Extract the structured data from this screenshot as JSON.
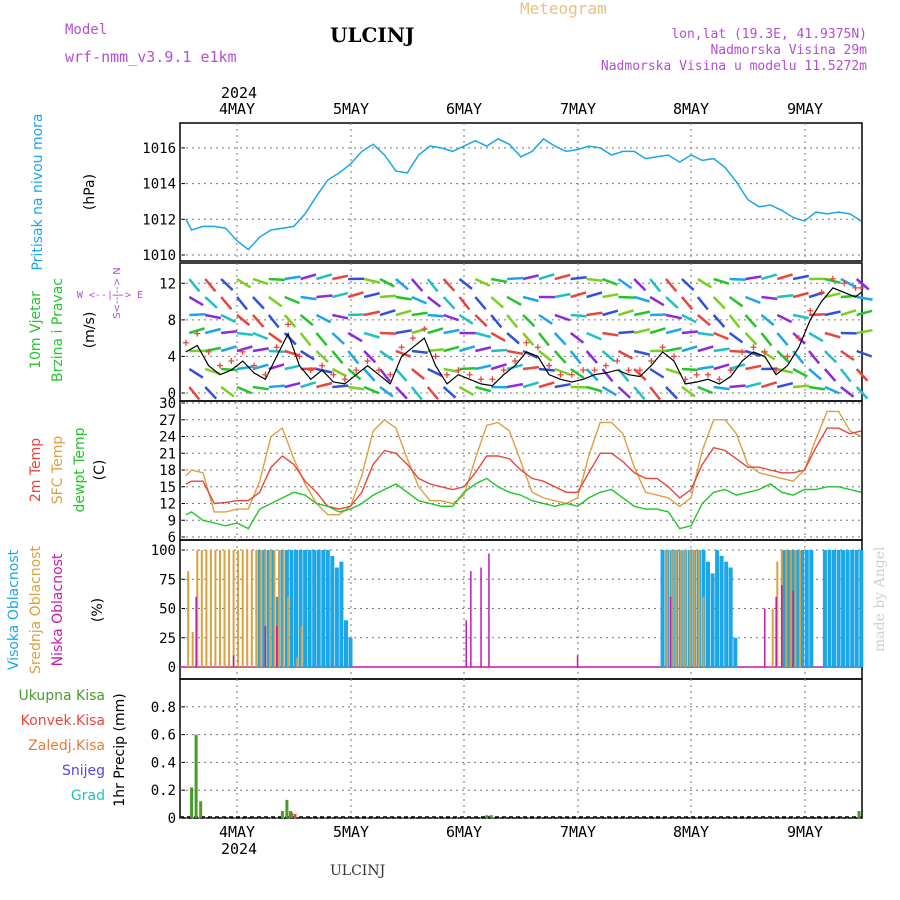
{
  "header": {
    "model_label": "Model",
    "model_name": "wrf-nmm_v3.9.1  e1km",
    "station": "ULCINJ",
    "meteogram": "Meteogram",
    "lonlat": "lon,lat (19.3E, 41.9375N)",
    "elev": "Nadmorska Visina 29m",
    "elev_model": "Nadmorska Visina u modelu 11.5272m",
    "watermark": "made by Angel",
    "footer": "ULCINJ"
  },
  "colors": {
    "pressure": "#1ba6e8",
    "temp2m": "#e8463c",
    "sfc": "#dba040",
    "dewpt": "#22c52a",
    "cloud_high": "#1ba6e8",
    "cloud_mid": "#dba040",
    "cloud_low": "#c21aae",
    "precip_total": "#4a9c2a",
    "precip_conv": "#e8463c",
    "purple_text": "#b54dd6",
    "orange_text": "#e8c080"
  },
  "chart_data": [
    {
      "type": "line",
      "name": "pressure",
      "ylabel": "Pritisak na nivou mora",
      "unit": "(hPa)",
      "ylim": [
        1010,
        1017
      ],
      "yticks": [
        "1010",
        "1012",
        "1014",
        "1016"
      ],
      "x_dates": [
        "2024-05-04",
        "2024-05-05",
        "2024-05-06",
        "2024-05-07",
        "2024-05-08",
        "2024-05-09"
      ],
      "x_labels": [
        "4MAY",
        "5MAY",
        "6MAY",
        "7MAY",
        "8MAY",
        "9MAY"
      ],
      "top_year": "2024",
      "x_day": [
        3.55,
        3.6,
        3.7,
        3.8,
        3.9,
        4.0,
        4.1,
        4.2,
        4.3,
        4.4,
        4.5,
        4.6,
        4.7,
        4.8,
        4.9,
        5.0,
        5.1,
        5.2,
        5.3,
        5.4,
        5.5,
        5.6,
        5.7,
        5.8,
        5.9,
        6.0,
        6.1,
        6.2,
        6.3,
        6.4,
        6.5,
        6.6,
        6.7,
        6.8,
        6.9,
        7.0,
        7.1,
        7.2,
        7.3,
        7.4,
        7.5,
        7.6,
        7.7,
        7.8,
        7.9,
        8.0,
        8.1,
        8.2,
        8.3,
        8.4,
        8.5,
        8.6,
        8.7,
        8.8,
        8.9,
        9.0,
        9.1,
        9.2,
        9.3,
        9.4,
        9.5
      ],
      "values": [
        1012.0,
        1011.4,
        1011.6,
        1011.6,
        1011.5,
        1010.8,
        1010.3,
        1011.0,
        1011.4,
        1011.5,
        1011.6,
        1012.3,
        1013.3,
        1014.2,
        1014.6,
        1015.1,
        1015.8,
        1016.2,
        1015.6,
        1014.7,
        1014.6,
        1015.6,
        1016.1,
        1016.0,
        1015.8,
        1016.1,
        1016.4,
        1016.1,
        1016.5,
        1016.2,
        1015.5,
        1015.8,
        1016.5,
        1016.1,
        1015.8,
        1015.9,
        1016.1,
        1016.0,
        1015.6,
        1015.8,
        1015.8,
        1015.4,
        1015.5,
        1015.6,
        1015.2,
        1015.6,
        1015.3,
        1015.4,
        1014.9,
        1014.1,
        1013.1,
        1012.7,
        1012.8,
        1012.5,
        1012.1,
        1011.9,
        1012.4,
        1012.3,
        1012.4,
        1012.3,
        1011.9
      ]
    },
    {
      "type": "line",
      "name": "wind",
      "ylabel_1": "10m Vjetar",
      "ylabel_2": "Brzina i Pravac",
      "unit": "(m/s)",
      "compass": "W <--|--> E",
      "compass_ns": "S<--|--> N",
      "ylim": [
        0,
        14
      ],
      "yticks": [
        "0",
        "4",
        "8",
        "12"
      ],
      "x_day": [
        3.55,
        3.65,
        3.75,
        3.85,
        3.95,
        4.05,
        4.15,
        4.25,
        4.35,
        4.45,
        4.55,
        4.65,
        4.75,
        4.85,
        4.95,
        5.05,
        5.15,
        5.25,
        5.35,
        5.45,
        5.55,
        5.65,
        5.75,
        5.85,
        5.95,
        6.05,
        6.15,
        6.25,
        6.35,
        6.45,
        6.55,
        6.65,
        6.75,
        6.85,
        6.95,
        7.05,
        7.15,
        7.25,
        7.35,
        7.45,
        7.55,
        7.65,
        7.75,
        7.85,
        7.95,
        8.05,
        8.15,
        8.25,
        8.35,
        8.45,
        8.55,
        8.65,
        8.75,
        8.85,
        8.95,
        9.05,
        9.15,
        9.25,
        9.35,
        9.45,
        9.5
      ],
      "speed": [
        4.5,
        5.2,
        3.0,
        2.0,
        2.5,
        3.5,
        2.2,
        1.5,
        4.0,
        6.5,
        3.0,
        1.5,
        2.5,
        1.2,
        1.0,
        2.0,
        3.0,
        2.0,
        1.0,
        4.0,
        5.0,
        6.0,
        3.0,
        1.0,
        2.0,
        1.5,
        1.0,
        0.8,
        2.0,
        3.0,
        4.5,
        4.0,
        2.0,
        1.5,
        1.2,
        1.5,
        2.0,
        2.2,
        2.5,
        2.0,
        1.8,
        3.0,
        4.5,
        3.5,
        1.0,
        1.2,
        1.5,
        1.0,
        1.8,
        3.5,
        4.5,
        4.0,
        2.0,
        3.0,
        5.0,
        8.0,
        10.0,
        11.5,
        11.0,
        10.5,
        11.0
      ],
      "gust": [
        5.5,
        6.5,
        4.5,
        3.0,
        3.5,
        4.5,
        3.0,
        2.0,
        5.0,
        7.5,
        4.0,
        2.5,
        3.0,
        2.0,
        1.5,
        2.5,
        3.5,
        2.5,
        2.0,
        5.0,
        6.0,
        7.0,
        4.0,
        2.0,
        2.5,
        2.0,
        1.5,
        1.5,
        2.5,
        3.5,
        5.5,
        5.0,
        3.0,
        2.0,
        2.0,
        2.5,
        2.5,
        3.0,
        3.5,
        2.5,
        2.5,
        3.5,
        5.0,
        4.0,
        1.5,
        2.0,
        2.0,
        1.5,
        2.5,
        4.5,
        5.0,
        4.5,
        2.5,
        4.0,
        6.0,
        9.0,
        11.0,
        12.5,
        12.0,
        11.5,
        11.5
      ]
    },
    {
      "type": "line",
      "name": "temperature",
      "ylabel_1": "2m Temp",
      "ylabel_2": "SFC Temp",
      "ylabel_3": "dewpt Temp",
      "unit": "(C)",
      "ylim": [
        6,
        30
      ],
      "yticks": [
        "6",
        "9",
        "12",
        "15",
        "18",
        "21",
        "24",
        "27",
        "30"
      ],
      "x_day": [
        3.55,
        3.6,
        3.7,
        3.8,
        3.9,
        4.0,
        4.1,
        4.2,
        4.3,
        4.4,
        4.5,
        4.6,
        4.7,
        4.8,
        4.9,
        5.0,
        5.1,
        5.2,
        5.3,
        5.4,
        5.5,
        5.6,
        5.7,
        5.8,
        5.9,
        6.0,
        6.1,
        6.2,
        6.3,
        6.4,
        6.5,
        6.6,
        6.7,
        6.8,
        6.9,
        7.0,
        7.1,
        7.2,
        7.3,
        7.4,
        7.5,
        7.6,
        7.7,
        7.8,
        7.9,
        8.0,
        8.1,
        8.2,
        8.3,
        8.4,
        8.5,
        8.6,
        8.7,
        8.8,
        8.9,
        9.0,
        9.1,
        9.2,
        9.3,
        9.4,
        9.5
      ],
      "t2m": [
        15.5,
        16.0,
        16.0,
        12.0,
        12.2,
        12.5,
        12.5,
        14.0,
        18.5,
        20.5,
        19.0,
        16.0,
        14.0,
        11.5,
        11.0,
        11.5,
        14.0,
        19.0,
        21.5,
        21.0,
        19.0,
        16.5,
        15.5,
        15.0,
        14.5,
        15.0,
        17.5,
        20.5,
        20.5,
        20.0,
        18.0,
        16.5,
        16.0,
        15.0,
        14.0,
        14.0,
        17.5,
        21.0,
        21.0,
        19.5,
        17.5,
        16.5,
        16.5,
        15.0,
        13.0,
        14.5,
        19.0,
        22.0,
        21.5,
        20.0,
        18.5,
        18.5,
        18.0,
        17.5,
        17.5,
        18.0,
        22.0,
        25.5,
        25.5,
        24.5,
        25.0
      ],
      "sfc": [
        17.0,
        18.0,
        17.5,
        10.5,
        10.5,
        11.0,
        11.0,
        16.0,
        24.0,
        25.5,
        20.0,
        15.5,
        12.0,
        10.0,
        10.0,
        11.5,
        17.0,
        25.0,
        27.0,
        25.5,
        20.0,
        15.0,
        12.5,
        12.5,
        12.0,
        13.5,
        20.0,
        26.0,
        26.5,
        25.0,
        19.5,
        14.0,
        13.0,
        12.5,
        12.0,
        13.0,
        20.5,
        26.5,
        26.5,
        24.5,
        18.5,
        14.0,
        13.5,
        13.0,
        11.5,
        13.0,
        21.5,
        27.0,
        27.0,
        24.5,
        19.0,
        17.5,
        17.0,
        16.5,
        16.0,
        18.0,
        23.5,
        28.5,
        28.5,
        25.0,
        24.0
      ],
      "dewpt": [
        10.0,
        10.5,
        9.0,
        8.5,
        8.0,
        8.5,
        7.5,
        11.0,
        12.0,
        13.0,
        14.0,
        13.5,
        12.0,
        11.5,
        10.5,
        11.0,
        12.0,
        13.5,
        14.5,
        15.5,
        14.0,
        12.5,
        12.0,
        11.5,
        11.5,
        14.0,
        15.5,
        16.5,
        15.0,
        14.0,
        13.5,
        12.5,
        12.0,
        11.5,
        12.0,
        11.5,
        13.0,
        14.0,
        14.5,
        13.0,
        11.5,
        11.0,
        11.0,
        10.5,
        7.5,
        8.0,
        12.0,
        14.0,
        14.5,
        13.5,
        14.0,
        14.5,
        15.5,
        14.0,
        13.5,
        14.5,
        14.5,
        15.0,
        15.0,
        14.5,
        14.0
      ]
    },
    {
      "type": "bar",
      "name": "clouds",
      "ylabel_1": "Visoka Oblacnost",
      "ylabel_2": "Srednja Oblacnost",
      "ylabel_3": "Niska Oblacnost",
      "unit": "(%)",
      "ylim": [
        0,
        100
      ],
      "yticks": [
        "0",
        "25",
        "50",
        "75",
        "100"
      ],
      "high": {
        "start": 4.2,
        "step": 0.04,
        "values": [
          100,
          100,
          100,
          100,
          60,
          100,
          100,
          100,
          100,
          100,
          100,
          100,
          100,
          100,
          100,
          100,
          95,
          85,
          90,
          40,
          25,
          0
        ]
      },
      "mid": {
        "start": 3.57,
        "step": 0.04,
        "values": [
          82,
          30,
          100,
          100,
          100,
          100,
          100,
          100,
          100,
          100,
          100,
          100,
          100,
          100,
          100,
          100,
          100,
          100,
          100,
          100,
          100,
          100,
          60,
          0,
          8,
          35
        ]
      },
      "low": {
        "x": [
          3.64,
          3.97,
          4.25,
          4.35,
          6.02,
          6.06,
          6.15,
          6.22,
          7.0,
          7.82,
          8.65,
          8.75,
          8.8,
          8.9
        ],
        "values": [
          60,
          10,
          35,
          35,
          40,
          82,
          85,
          97,
          10,
          60,
          50,
          60,
          70,
          65
        ]
      },
      "high2": {
        "start": 7.75,
        "step": 0.04,
        "values": [
          100,
          100,
          100,
          100,
          100,
          100,
          100,
          100,
          100,
          100,
          90,
          80,
          100,
          95,
          90,
          85,
          25
        ]
      },
      "mid2": {
        "start": 7.75,
        "step": 0.04,
        "values": [
          0,
          100,
          100,
          100,
          100,
          100,
          100,
          100,
          100,
          60
        ]
      },
      "high3": {
        "start": 8.82,
        "step": 0.04,
        "values": [
          100,
          100,
          100,
          100,
          100,
          100,
          100,
          0,
          0,
          100,
          100,
          100,
          100,
          100,
          100,
          100,
          100,
          100
        ]
      },
      "mid3": {
        "start": 8.72,
        "step": 0.04,
        "values": [
          50,
          90,
          100,
          100,
          100,
          100,
          100
        ]
      }
    },
    {
      "type": "bar",
      "name": "precip",
      "ylabel": "1hr Precip",
      "unit": "(mm)",
      "ylim": [
        0,
        1.0
      ],
      "yticks": [
        "0",
        "0.2",
        "0.4",
        "0.6",
        "0.8"
      ],
      "legend": [
        {
          "label": "Ukupna  Kisa",
          "color": "#4a9c2a"
        },
        {
          "label": "Konvek.Kisa",
          "color": "#e8463c"
        },
        {
          "label": "Zaledj.Kisa",
          "color": "#e87a3c"
        },
        {
          "label": "Snijeg",
          "color": "#6040e0"
        },
        {
          "label": "Grad",
          "color": "#20c0c0"
        }
      ],
      "x_day": [
        3.6,
        3.64,
        3.68,
        4.4,
        4.44,
        4.48,
        6.2,
        6.24,
        9.48
      ],
      "total": [
        0.22,
        0.6,
        0.12,
        0.05,
        0.13,
        0.04,
        0.02,
        0.02,
        0.05
      ],
      "conv": [
        0.0,
        0.0,
        0.0,
        0.0,
        0.05,
        0.03,
        0.0,
        0.0,
        0.0
      ]
    }
  ]
}
